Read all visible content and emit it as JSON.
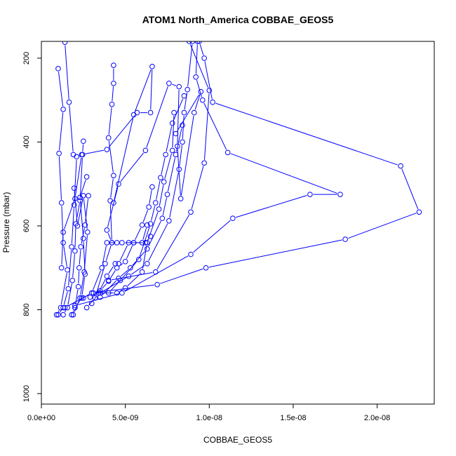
{
  "chart_data": {
    "type": "line",
    "title": "ATOM1 North_America COBBAE_GEOS5",
    "xlabel": "COBBAE_GEOS5",
    "ylabel": "Pressure (mbar)",
    "xlim": [
      0,
      2.34e-08
    ],
    "ylim": [
      1025,
      160
    ],
    "y_reversed": true,
    "grid": false,
    "colors": {
      "series": "#0000ff"
    },
    "x_ticks": [
      {
        "value": 0,
        "label": "0.0e+00"
      },
      {
        "value": 5e-09,
        "label": "5.0e-09"
      },
      {
        "value": 1e-08,
        "label": "1.0e-08"
      },
      {
        "value": 1.5e-08,
        "label": "1.5e-08"
      },
      {
        "value": 2e-08,
        "label": "2.0e-08"
      }
    ],
    "y_ticks": [
      {
        "value": 200,
        "label": "200"
      },
      {
        "value": 400,
        "label": "400"
      },
      {
        "value": 600,
        "label": "600"
      },
      {
        "value": 800,
        "label": "800"
      },
      {
        "value": 1000,
        "label": "1000"
      }
    ],
    "series": [
      {
        "points": [
          [
            9e-10,
            812
          ],
          [
            1.15e-09,
            795
          ],
          [
            1.55e-09,
            705
          ],
          [
            1.3e-09,
            640
          ],
          [
            1.2e-09,
            545
          ],
          [
            1.05e-09,
            427
          ],
          [
            1.3e-09,
            322
          ],
          [
            1e-09,
            225
          ]
        ]
      },
      {
        "points": [
          [
            1e-09,
            812
          ],
          [
            1.3e-09,
            795
          ],
          [
            1.6e-09,
            750
          ],
          [
            1.8e-09,
            650
          ],
          [
            1.95e-09,
            550
          ],
          [
            2.1e-09,
            435
          ],
          [
            1.9e-09,
            430
          ],
          [
            1.65e-09,
            305
          ],
          [
            1.4e-09,
            162
          ]
        ]
      },
      {
        "points": [
          [
            1.3e-09,
            812
          ],
          [
            1.55e-09,
            795
          ],
          [
            1.85e-09,
            730
          ],
          [
            2e-09,
            660
          ],
          [
            2.05e-09,
            595
          ],
          [
            2.3e-09,
            540
          ],
          [
            2.45e-09,
            430
          ],
          [
            2.5e-09,
            398
          ]
        ]
      },
      {
        "points": [
          [
            1.8e-09,
            812
          ],
          [
            2e-09,
            795
          ],
          [
            2.2e-09,
            745
          ],
          [
            2.25e-09,
            700
          ],
          [
            2.35e-09,
            650
          ],
          [
            2.6e-09,
            598
          ],
          [
            2.8e-09,
            528
          ]
        ]
      },
      {
        "points": [
          [
            1.9e-09,
            812
          ],
          [
            2.3e-09,
            772
          ],
          [
            2.55e-09,
            710
          ],
          [
            2.75e-09,
            615
          ],
          [
            2.5e-09,
            528
          ],
          [
            2.15e-09,
            600
          ],
          [
            1.95e-09,
            510
          ]
        ]
      },
      {
        "points": [
          [
            2e-09,
            795
          ],
          [
            2.4e-09,
            772
          ],
          [
            2.6e-09,
            715
          ],
          [
            2.5e-09,
            630
          ],
          [
            2.3e-09,
            532
          ],
          [
            2.7e-09,
            483
          ]
        ]
      },
      {
        "points": [
          [
            2.5e-09,
            772
          ],
          [
            3e-09,
            760
          ],
          [
            3.6e-09,
            700
          ],
          [
            3.9e-09,
            640
          ],
          [
            4.5e-09,
            640
          ],
          [
            4.8e-09,
            640
          ],
          [
            5.5e-09,
            640
          ],
          [
            6.2e-09,
            640
          ],
          [
            6.5e-09,
            625
          ]
        ]
      },
      {
        "points": [
          [
            2.7e-09,
            795
          ],
          [
            3.2e-09,
            772
          ],
          [
            3.8e-09,
            690
          ],
          [
            4.2e-09,
            640
          ],
          [
            4.1e-09,
            540
          ],
          [
            4.3e-09,
            480
          ],
          [
            4e-09,
            390
          ],
          [
            4.2e-09,
            310
          ],
          [
            4.3e-09,
            260
          ],
          [
            4.3e-09,
            217
          ]
        ]
      },
      {
        "points": [
          [
            3e-09,
            785
          ],
          [
            3.4e-09,
            760
          ],
          [
            3.9e-09,
            720
          ],
          [
            4.4e-09,
            690
          ],
          [
            4.6e-09,
            690
          ],
          [
            5.2e-09,
            640
          ],
          [
            6e-09,
            640
          ],
          [
            6.3e-09,
            598
          ]
        ]
      },
      {
        "points": [
          [
            2.9e-09,
            770
          ],
          [
            3.5e-09,
            755
          ],
          [
            4e-09,
            732
          ],
          [
            4.5e-09,
            700
          ],
          [
            5e-09,
            685
          ],
          [
            5.5e-09,
            640
          ],
          [
            6e-09,
            598
          ],
          [
            6.4e-09,
            555
          ],
          [
            6.6e-09,
            507
          ]
        ]
      },
      {
        "points": [
          [
            3.1e-09,
            760
          ],
          [
            4.5e-09,
            760
          ],
          [
            5e-09,
            748
          ],
          [
            6e-09,
            710
          ],
          [
            6.3e-09,
            640
          ],
          [
            7e-09,
            560
          ],
          [
            7.3e-09,
            495
          ],
          [
            7.8e-09,
            420
          ],
          [
            7.9e-09,
            330
          ]
        ]
      },
      {
        "points": [
          [
            3.5e-09,
            770
          ],
          [
            4.6e-09,
            725
          ],
          [
            5.3e-09,
            700
          ],
          [
            6.3e-09,
            655
          ],
          [
            7.2e-09,
            582
          ],
          [
            7.5e-09,
            525
          ],
          [
            8e-09,
            430
          ],
          [
            8.4e-09,
            360
          ]
        ]
      },
      {
        "points": [
          [
            4e-09,
            760
          ],
          [
            4.7e-09,
            730
          ],
          [
            5.8e-09,
            680
          ],
          [
            6.5e-09,
            595
          ],
          [
            6.8e-09,
            545
          ],
          [
            7.1e-09,
            485
          ],
          [
            7.4e-09,
            430
          ],
          [
            7.8e-09,
            355
          ],
          [
            8.5e-09,
            290
          ]
        ]
      },
      {
        "points": [
          [
            3.5e-09,
            760
          ],
          [
            5.2e-09,
            720
          ],
          [
            6.3e-09,
            690
          ],
          [
            7.6e-09,
            588
          ],
          [
            8.2e-09,
            465
          ],
          [
            8.4e-09,
            400
          ],
          [
            8.5e-09,
            330
          ],
          [
            8.7e-09,
            275
          ],
          [
            9e-09,
            160
          ]
        ]
      },
      {
        "points": [
          [
            1.4e-09,
            795
          ],
          [
            3e-09,
            760
          ],
          [
            6.9e-09,
            740
          ],
          [
            9.8e-09,
            700
          ],
          [
            1.81e-08,
            632
          ],
          [
            2.25e-08,
            567
          ],
          [
            2.14e-08,
            457
          ],
          [
            1.02e-08,
            305
          ],
          [
            9.7e-09,
            200
          ],
          [
            9.4e-09,
            160
          ]
        ]
      },
      {
        "points": [
          [
            2e-09,
            790
          ],
          [
            4.8e-09,
            760
          ],
          [
            8.9e-09,
            668
          ],
          [
            1.14e-08,
            582
          ],
          [
            1.6e-08,
            525
          ],
          [
            1.78e-08,
            525
          ],
          [
            1.11e-08,
            425
          ],
          [
            9.6e-09,
            300
          ],
          [
            9.2e-09,
            245
          ],
          [
            9.3e-09,
            160
          ]
        ]
      },
      {
        "points": [
          [
            4e-09,
            730
          ],
          [
            6.8e-09,
            710
          ],
          [
            8.9e-09,
            567
          ],
          [
            9.7e-09,
            450
          ],
          [
            1e-08,
            277
          ],
          [
            8.8e-09,
            160
          ]
        ]
      },
      {
        "points": [
          [
            1.2e-09,
            700
          ],
          [
            1.3e-09,
            615
          ],
          [
            2e-09,
            535
          ],
          [
            2.4e-09,
            430
          ],
          [
            3.9e-09,
            418
          ],
          [
            5.7e-09,
            330
          ],
          [
            6.5e-09,
            330
          ],
          [
            6.6e-09,
            220
          ],
          [
            5.5e-09,
            335
          ],
          [
            4.3e-09,
            545
          ]
        ]
      },
      {
        "points": [
          [
            4.2e-09,
            640
          ],
          [
            3.9e-09,
            610
          ],
          [
            4.6e-09,
            500
          ],
          [
            6.2e-09,
            420
          ],
          [
            7.6e-09,
            260
          ],
          [
            8.2e-09,
            268
          ],
          [
            8.1e-09,
            410
          ],
          [
            8.3e-09,
            535
          ],
          [
            9.1e-09,
            330
          ],
          [
            9.5e-09,
            280
          ],
          [
            8e-09,
            380
          ]
        ]
      }
    ]
  }
}
